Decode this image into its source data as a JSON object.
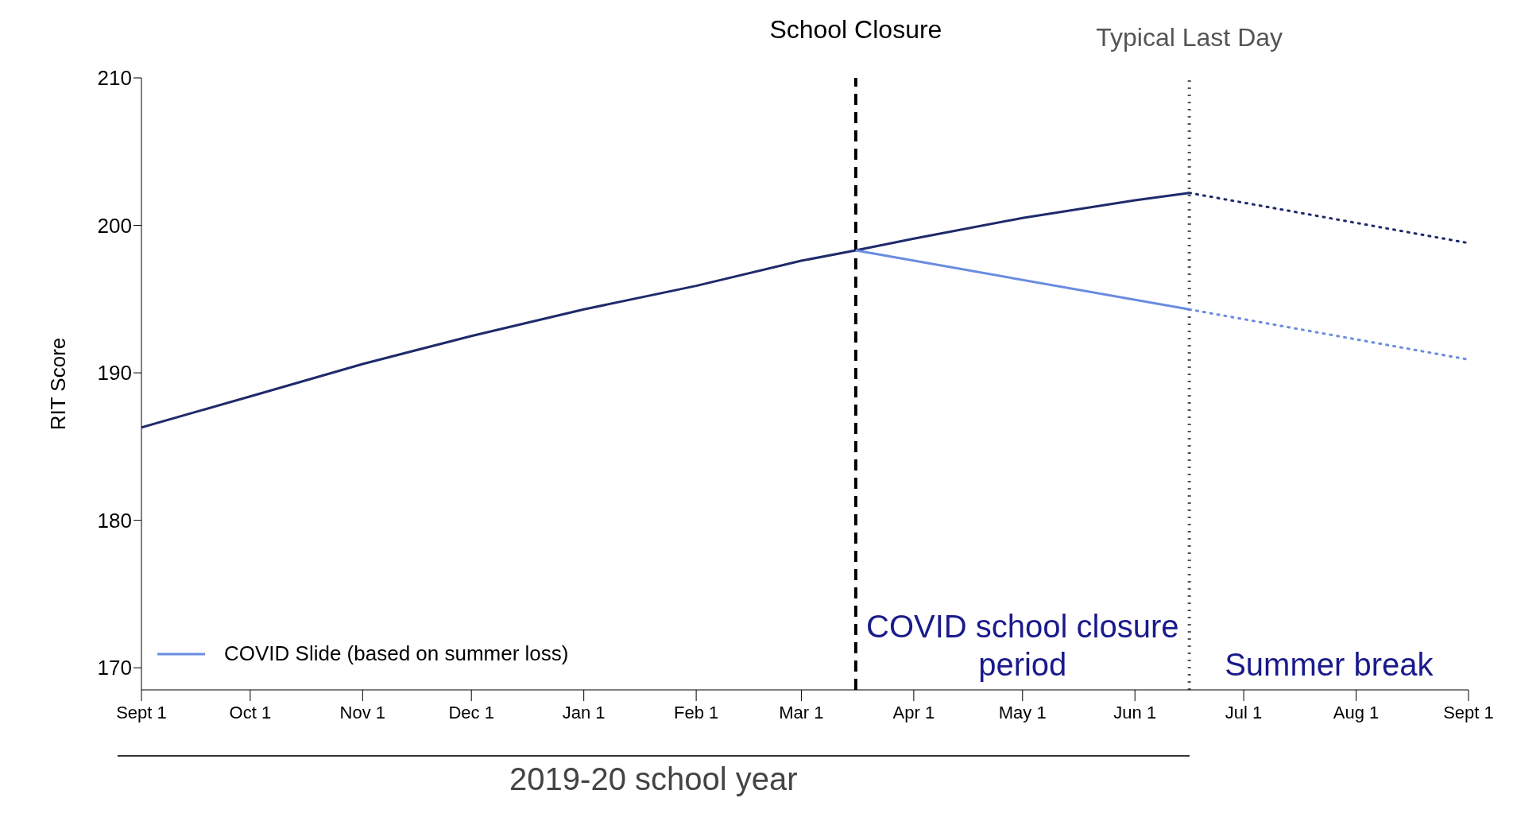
{
  "chart_data": {
    "type": "line",
    "xlabel": "2019-20 school year",
    "ylabel": "RIT Score",
    "xlim": [
      "2019-09-01",
      "2020-09-01"
    ],
    "xticks": [
      {
        "value": "2019-09-01",
        "label": "Sept 1"
      },
      {
        "value": "2019-10-01",
        "label": "Oct 1"
      },
      {
        "value": "2019-11-01",
        "label": "Nov 1"
      },
      {
        "value": "2019-12-01",
        "label": "Dec 1"
      },
      {
        "value": "2020-01-01",
        "label": "Jan 1"
      },
      {
        "value": "2020-02-01",
        "label": "Feb 1"
      },
      {
        "value": "2020-03-01",
        "label": "Mar 1"
      },
      {
        "value": "2020-04-01",
        "label": "Apr 1"
      },
      {
        "value": "2020-05-01",
        "label": "May 1"
      },
      {
        "value": "2020-06-01",
        "label": "Jun 1"
      },
      {
        "value": "2020-07-01",
        "label": "Jul 1"
      },
      {
        "value": "2020-08-01",
        "label": "Aug 1"
      },
      {
        "value": "2020-09-01",
        "label": "Sept 1"
      }
    ],
    "ylim": [
      168.5,
      210
    ],
    "yticks": [
      170,
      180,
      190,
      200,
      210
    ],
    "legend": "bottom left",
    "marker": "none",
    "series": [
      {
        "color": "#1f2a6b",
        "line_style": "solid",
        "x": [
          "2019-09-01",
          "2019-10-01",
          "2019-11-01",
          "2019-12-01",
          "2020-01-01",
          "2020-02-01",
          "2020-03-01",
          "2020-03-16",
          "2020-04-01",
          "2020-05-01",
          "2020-06-01",
          "2020-06-16"
        ],
        "values": [
          186.3,
          188.4,
          190.6,
          192.5,
          194.3,
          195.9,
          197.6,
          198.3,
          199.1,
          200.5,
          201.7,
          202.2
        ]
      },
      {
        "color": "#1f2a6b",
        "line_style": "dotted",
        "x": [
          "2020-06-16",
          "2020-09-01"
        ],
        "values": [
          202.2,
          198.8
        ]
      },
      {
        "name": "COVID Slide (based on summer loss)",
        "color": "#6a8ce0",
        "line_style": "solid",
        "x": [
          "2020-03-16",
          "2020-06-16"
        ],
        "values": [
          198.3,
          194.3
        ]
      },
      {
        "color": "#6a8ce0",
        "line_style": "dotted",
        "x": [
          "2020-06-16",
          "2020-09-01"
        ],
        "values": [
          194.3,
          190.9
        ]
      }
    ],
    "ref_lines": [
      {
        "axis": "x",
        "value": "2020-03-16",
        "label": "School Closure",
        "color": "#000000",
        "line_style": "dashed"
      },
      {
        "axis": "x",
        "value": "2020-06-16",
        "label": "Typical Last Day",
        "color": "#555555",
        "line_style": "dotted"
      }
    ],
    "annotations": [
      "COVID school closure period",
      "Summer break"
    ]
  }
}
